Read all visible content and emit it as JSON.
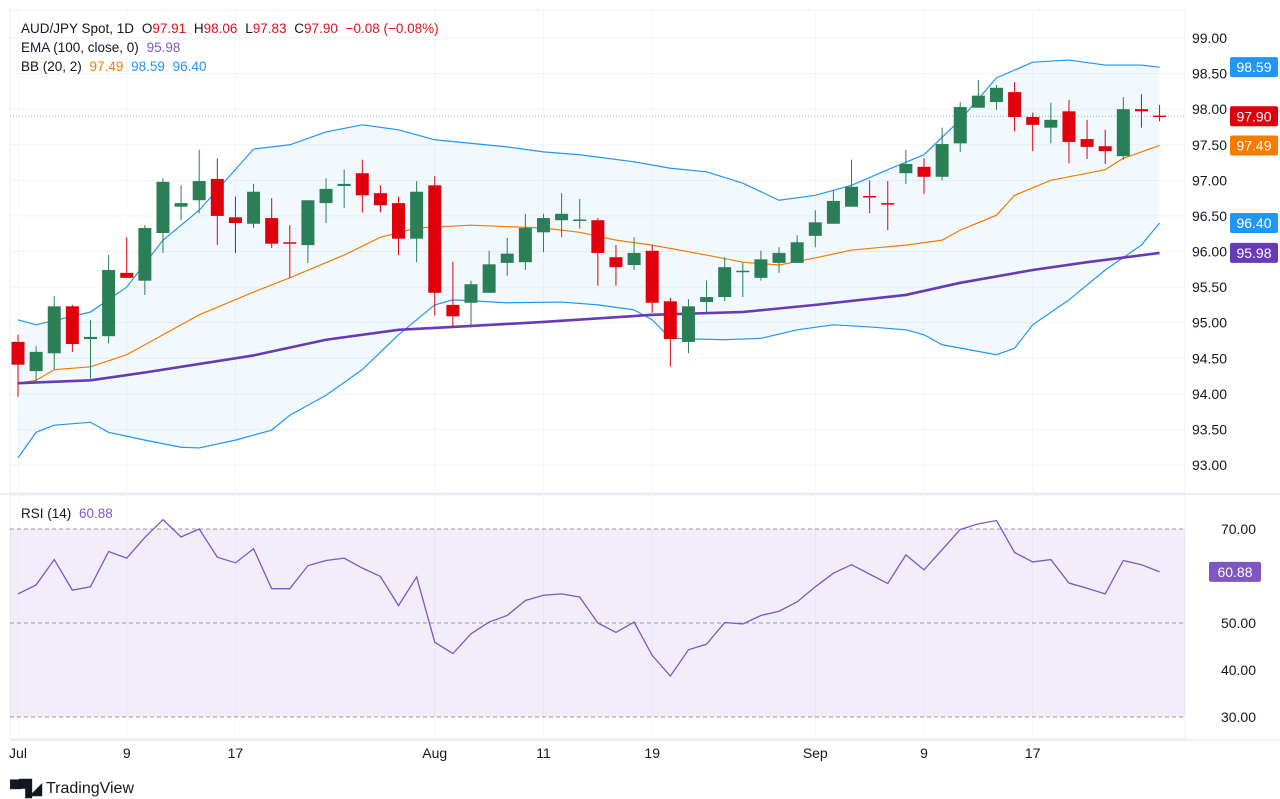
{
  "legend": {
    "symbol": "AUD/JPY Spot, 1D",
    "open_label": "O",
    "open": "97.91",
    "high_label": "H",
    "high": "98.06",
    "low_label": "L",
    "low": "97.83",
    "close_label": "C",
    "close": "97.90",
    "change": "−0.08 (−0.08%)",
    "ema_label": "EMA (100, close, 0)",
    "ema_value": "95.98",
    "bb_label": "BB (20, 2)",
    "bb_mid": "97.49",
    "bb_upper": "98.59",
    "bb_lower": "96.40",
    "rsi_label": "RSI (14)",
    "rsi_value": "60.88"
  },
  "branding": {
    "logo_text": "TradingView"
  },
  "colors": {
    "up": "#2a7f57",
    "down": "#e0000c",
    "bb_band": "#2196f3",
    "bb_mid": "#f57c00",
    "ema": "#673ab7",
    "rsi": "#7e57c2",
    "last_price": "#e0000c"
  },
  "chart_data": [
    {
      "type": "candlestick",
      "title": "AUD/JPY Spot, 1D",
      "ylim": [
        92.6,
        99.5
      ],
      "grid": true,
      "y_ticks": [
        "99.00",
        "98.50",
        "98.00",
        "97.50",
        "97.00",
        "96.50",
        "96.00",
        "95.50",
        "95.00",
        "94.50",
        "94.00",
        "93.50",
        "93.00"
      ],
      "x_ticks": [
        {
          "label": "Jul",
          "index": 0
        },
        {
          "label": "9",
          "index": 6
        },
        {
          "label": "17",
          "index": 12
        },
        {
          "label": "Aug",
          "index": 23
        },
        {
          "label": "11",
          "index": 29
        },
        {
          "label": "19",
          "index": 35
        },
        {
          "label": "Sep",
          "index": 44
        },
        {
          "label": "9",
          "index": 50
        },
        {
          "label": "17",
          "index": 56
        }
      ],
      "ohlc": [
        [
          94.73,
          94.83,
          93.96,
          94.41
        ],
        [
          94.32,
          94.67,
          94.15,
          94.59
        ],
        [
          94.57,
          95.37,
          94.34,
          95.23
        ],
        [
          95.23,
          95.25,
          94.59,
          94.7
        ],
        [
          94.77,
          95.04,
          94.21,
          94.8
        ],
        [
          94.81,
          95.95,
          94.71,
          95.74
        ],
        [
          95.7,
          96.2,
          95.63,
          95.63
        ],
        [
          95.59,
          96.37,
          95.39,
          96.33
        ],
        [
          96.26,
          97.03,
          95.98,
          96.98
        ],
        [
          96.63,
          96.93,
          96.44,
          96.68
        ],
        [
          96.72,
          97.43,
          96.54,
          96.99
        ],
        [
          97.02,
          97.31,
          96.09,
          96.5
        ],
        [
          96.48,
          96.77,
          95.98,
          96.4
        ],
        [
          96.39,
          96.95,
          96.33,
          96.84
        ],
        [
          96.47,
          96.75,
          96.05,
          96.11
        ],
        [
          96.13,
          96.37,
          95.63,
          96.11
        ],
        [
          96.09,
          96.72,
          95.84,
          96.72
        ],
        [
          96.68,
          97.03,
          96.4,
          96.88
        ],
        [
          96.92,
          97.15,
          96.61,
          96.95
        ],
        [
          97.1,
          97.29,
          96.55,
          96.79
        ],
        [
          96.82,
          96.93,
          96.55,
          96.65
        ],
        [
          96.68,
          96.77,
          95.95,
          96.18
        ],
        [
          96.18,
          96.99,
          95.85,
          96.84
        ],
        [
          96.93,
          97.06,
          95.1,
          95.42
        ],
        [
          95.25,
          95.86,
          94.93,
          95.09
        ],
        [
          95.28,
          95.59,
          94.93,
          95.54
        ],
        [
          95.42,
          96.01,
          95.42,
          95.82
        ],
        [
          95.84,
          96.19,
          95.66,
          95.97
        ],
        [
          95.85,
          96.53,
          95.74,
          96.33
        ],
        [
          96.27,
          96.53,
          95.99,
          96.47
        ],
        [
          96.44,
          96.82,
          96.2,
          96.53
        ],
        [
          96.43,
          96.74,
          96.32,
          96.45
        ],
        [
          96.44,
          96.47,
          95.52,
          95.98
        ],
        [
          95.92,
          96.09,
          95.52,
          95.78
        ],
        [
          95.81,
          96.2,
          95.74,
          95.98
        ],
        [
          96.01,
          96.09,
          95.14,
          95.28
        ],
        [
          95.3,
          95.35,
          94.38,
          94.77
        ],
        [
          94.73,
          95.33,
          94.57,
          95.23
        ],
        [
          95.29,
          95.59,
          95.15,
          95.36
        ],
        [
          95.36,
          95.92,
          95.3,
          95.78
        ],
        [
          95.71,
          95.84,
          95.36,
          95.73
        ],
        [
          95.63,
          96.01,
          95.59,
          95.89
        ],
        [
          95.84,
          96.06,
          95.7,
          95.98
        ],
        [
          95.84,
          96.23,
          95.84,
          96.13
        ],
        [
          96.22,
          96.58,
          96.06,
          96.41
        ],
        [
          96.39,
          96.86,
          96.39,
          96.71
        ],
        [
          96.63,
          97.29,
          96.63,
          96.91
        ],
        [
          96.78,
          97.0,
          96.54,
          96.76
        ],
        [
          96.68,
          96.99,
          96.3,
          96.66
        ],
        [
          97.1,
          97.43,
          96.95,
          97.23
        ],
        [
          97.19,
          97.31,
          96.81,
          97.05
        ],
        [
          97.05,
          97.74,
          97.0,
          97.51
        ],
        [
          97.52,
          98.1,
          97.4,
          98.03
        ],
        [
          98.02,
          98.41,
          98.02,
          98.19
        ],
        [
          98.1,
          98.34,
          97.99,
          98.3
        ],
        [
          98.24,
          98.38,
          97.69,
          97.89
        ],
        [
          97.89,
          97.95,
          97.41,
          97.78
        ],
        [
          97.74,
          98.09,
          97.52,
          97.85
        ],
        [
          97.97,
          98.13,
          97.24,
          97.54
        ],
        [
          97.58,
          97.85,
          97.3,
          97.47
        ],
        [
          97.48,
          97.71,
          97.23,
          97.41
        ],
        [
          97.34,
          98.17,
          97.29,
          98.0
        ],
        [
          98.0,
          98.21,
          97.74,
          97.97
        ],
        [
          97.91,
          98.06,
          97.83,
          97.9
        ]
      ],
      "series": [
        {
          "name": "BB upper",
          "points": [
            [
              0,
              95.04
            ],
            [
              1,
              94.97
            ],
            [
              4,
              95.15
            ],
            [
              6,
              95.5
            ],
            [
              8,
              96.16
            ],
            [
              10,
              96.58
            ],
            [
              13,
              97.44
            ],
            [
              15,
              97.5
            ],
            [
              17,
              97.68
            ],
            [
              19,
              97.78
            ],
            [
              21,
              97.71
            ],
            [
              23,
              97.57
            ],
            [
              27,
              97.47
            ],
            [
              29,
              97.4
            ],
            [
              31,
              97.36
            ],
            [
              34,
              97.26
            ],
            [
              36,
              97.17
            ],
            [
              38,
              97.12
            ],
            [
              40,
              96.96
            ],
            [
              42,
              96.72
            ],
            [
              44,
              96.79
            ],
            [
              46,
              96.93
            ],
            [
              48,
              97.15
            ],
            [
              50,
              97.36
            ],
            [
              52,
              97.85
            ],
            [
              54,
              98.44
            ],
            [
              56,
              98.66
            ],
            [
              58,
              98.69
            ],
            [
              60,
              98.62
            ],
            [
              62,
              98.62
            ],
            [
              63,
              98.59
            ]
          ]
        },
        {
          "name": "BB lower",
          "points": [
            [
              0,
              93.1
            ],
            [
              1,
              93.46
            ],
            [
              2,
              93.56
            ],
            [
              4,
              93.6
            ],
            [
              5,
              93.46
            ],
            [
              7,
              93.35
            ],
            [
              9,
              93.25
            ],
            [
              10,
              93.24
            ],
            [
              12,
              93.35
            ],
            [
              14,
              93.49
            ],
            [
              15,
              93.7
            ],
            [
              17,
              93.98
            ],
            [
              19,
              94.34
            ],
            [
              21,
              94.83
            ],
            [
              23,
              95.25
            ],
            [
              24,
              95.32
            ],
            [
              27,
              95.28
            ],
            [
              30,
              95.29
            ],
            [
              32,
              95.25
            ],
            [
              34,
              95.18
            ],
            [
              35,
              95.04
            ],
            [
              36,
              94.78
            ],
            [
              39,
              94.76
            ],
            [
              41,
              94.78
            ],
            [
              43,
              94.9
            ],
            [
              45,
              94.97
            ],
            [
              47,
              94.94
            ],
            [
              49,
              94.9
            ],
            [
              50,
              94.83
            ],
            [
              51,
              94.69
            ],
            [
              54,
              94.55
            ],
            [
              55,
              94.64
            ],
            [
              56,
              94.97
            ],
            [
              58,
              95.32
            ],
            [
              60,
              95.74
            ],
            [
              62,
              96.09
            ],
            [
              63,
              96.4
            ]
          ]
        },
        {
          "name": "BB basis",
          "points": [
            [
              0,
              94.15
            ],
            [
              1,
              94.19
            ],
            [
              2,
              94.34
            ],
            [
              4,
              94.38
            ],
            [
              6,
              94.55
            ],
            [
              8,
              94.83
            ],
            [
              10,
              95.11
            ],
            [
              13,
              95.43
            ],
            [
              15,
              95.63
            ],
            [
              18,
              95.95
            ],
            [
              20,
              96.2
            ],
            [
              22,
              96.33
            ],
            [
              25,
              96.37
            ],
            [
              29,
              96.33
            ],
            [
              31,
              96.27
            ],
            [
              33,
              96.16
            ],
            [
              35,
              96.09
            ],
            [
              38,
              95.95
            ],
            [
              40,
              95.85
            ],
            [
              42,
              95.81
            ],
            [
              44,
              95.91
            ],
            [
              46,
              96.02
            ],
            [
              49,
              96.09
            ],
            [
              51,
              96.16
            ],
            [
              52,
              96.3
            ],
            [
              54,
              96.51
            ],
            [
              55,
              96.79
            ],
            [
              57,
              97.0
            ],
            [
              60,
              97.15
            ],
            [
              61,
              97.31
            ],
            [
              63,
              97.49
            ]
          ]
        },
        {
          "name": "EMA (100, close, 0)",
          "points": [
            [
              0,
              94.15
            ],
            [
              4,
              94.19
            ],
            [
              7,
              94.3
            ],
            [
              13,
              94.54
            ],
            [
              17,
              94.76
            ],
            [
              21,
              94.9
            ],
            [
              24,
              94.94
            ],
            [
              29,
              95.01
            ],
            [
              35,
              95.11
            ],
            [
              40,
              95.15
            ],
            [
              44,
              95.25
            ],
            [
              49,
              95.39
            ],
            [
              52,
              95.56
            ],
            [
              56,
              95.74
            ],
            [
              59,
              95.85
            ],
            [
              63,
              95.98
            ]
          ]
        }
      ],
      "price_badges": [
        {
          "value": "98.59",
          "color": "#2196f3"
        },
        {
          "value": "97.90",
          "color": "#e0000c"
        },
        {
          "value": "97.49",
          "color": "#f57c00"
        },
        {
          "value": "96.40",
          "color": "#2196f3"
        },
        {
          "value": "95.98",
          "color": "#673ab7"
        }
      ]
    },
    {
      "type": "line",
      "title": "RSI (14)",
      "ylim": [
        28,
        76
      ],
      "y_ticks": [
        "70.00",
        "50.00",
        "40.00",
        "30.00"
      ],
      "levels": [
        70,
        50,
        30
      ],
      "band": [
        30,
        70
      ],
      "values": [
        56.2,
        58.1,
        63.5,
        57.0,
        57.7,
        65.2,
        63.8,
        68.2,
        72.0,
        68.3,
        70.0,
        64.0,
        62.8,
        65.8,
        57.3,
        57.3,
        62.2,
        63.3,
        63.8,
        61.7,
        59.9,
        53.7,
        59.8,
        45.9,
        43.5,
        47.7,
        50.2,
        51.6,
        54.8,
        55.9,
        56.2,
        55.5,
        50.0,
        48.0,
        50.2,
        43.1,
        38.7,
        44.3,
        45.5,
        50.1,
        49.8,
        51.6,
        52.5,
        54.5,
        57.7,
        60.6,
        62.4,
        60.4,
        58.4,
        64.5,
        61.3,
        65.6,
        69.9,
        71.1,
        71.8,
        65.0,
        63.0,
        63.5,
        58.5,
        57.4,
        56.2,
        63.3,
        62.4,
        60.88
      ],
      "badge": {
        "value": "60.88",
        "color": "#7e57c2"
      }
    }
  ]
}
